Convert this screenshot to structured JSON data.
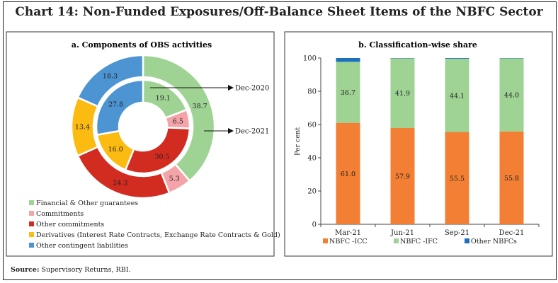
{
  "title": "Chart 14: Non-Funded Exposures/Off-Balance Sheet Items of the NBFC Sector",
  "source_label": "Source:",
  "source_text": " Supervisory Returns, RBI.",
  "chart_data": [
    {
      "type": "pie",
      "variant": "donut",
      "title": "a. Components of OBS activities",
      "categories": [
        "Financial & Other guarantees",
        "Commitments",
        "Other commitments",
        "Derivatives (Interest Rate Contracts, Exchange Rate Contracts & Gold)",
        "Other contingent liabilities"
      ],
      "colors": [
        "#9ed394",
        "#f4a3a8",
        "#d22b20",
        "#fbbb11",
        "#4c94d2"
      ],
      "series": [
        {
          "name": "Dec-2020",
          "ring": "inner",
          "values": [
            19.1,
            6.5,
            30.5,
            16.0,
            27.8
          ]
        },
        {
          "name": "Dec-2021",
          "ring": "outer",
          "values": [
            38.7,
            5.3,
            24.3,
            13.4,
            18.3
          ]
        }
      ],
      "legend": "bottom-left"
    },
    {
      "type": "bar",
      "stacked": true,
      "title": "b. Classification-wise share",
      "categories": [
        "Mar-21",
        "Jun-21",
        "Sep-21",
        "Dec-21"
      ],
      "ylabel": "Per cent",
      "ylim": [
        0,
        100
      ],
      "yticks": [
        0,
        20,
        40,
        60,
        80,
        100
      ],
      "series": [
        {
          "name": "NBFC -ICC",
          "color": "#f27f33",
          "values": [
            61.0,
            57.9,
            55.5,
            55.8
          ],
          "labels": [
            "61.0",
            "57.9",
            "55.5",
            "55.8"
          ]
        },
        {
          "name": "NBFC -IFC",
          "color": "#9ed394",
          "values": [
            36.7,
            41.9,
            44.1,
            44.0
          ],
          "labels": [
            "36.7",
            "41.9",
            "44.1",
            "44.0"
          ]
        },
        {
          "name": "Other NBFCs",
          "color": "#1f6fbf",
          "values": [
            2.3,
            0.2,
            0.4,
            0.2
          ]
        }
      ],
      "legend": "bottom"
    }
  ]
}
